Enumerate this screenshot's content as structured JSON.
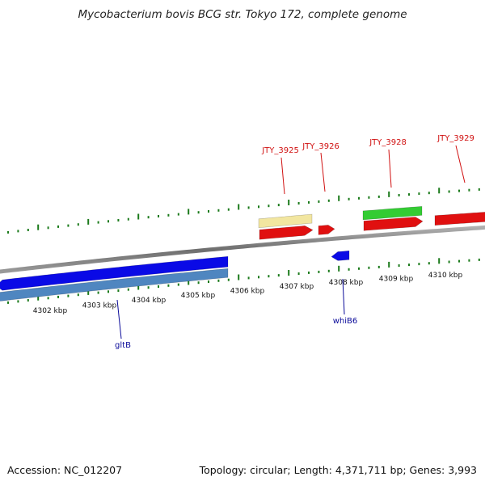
{
  "title": "Mycobacterium bovis BCG str. Tokyo 172, complete genome",
  "footer": {
    "accession": "Accession: NC_012207",
    "summary": "Topology: circular; Length: 4,371,711 bp; Genes: 3,993"
  },
  "axis": {
    "unit": "kbp",
    "tick_labels": [
      "4302 kbp",
      "4303 kbp",
      "4304 kbp",
      "4305 kbp",
      "4306 kbp",
      "4307 kbp",
      "4308 kbp",
      "4309 kbp",
      "4310 kbp"
    ]
  },
  "colors": {
    "backbone": "#808080",
    "tick": "#1a7a1a",
    "forward_cds": "#e01010",
    "forward_label": "#d01010",
    "forward_gene": "#f2e6a0",
    "forward_other": "#33cc33",
    "reverse_cds": "#0a0ae6",
    "reverse_label": "#0a0a99",
    "reverse_gene": "#4f86c0"
  },
  "genes": {
    "forward": [
      "JTY_3925",
      "JTY_3926",
      "JTY_3928",
      "JTY_3929"
    ],
    "reverse": [
      "whiB6",
      "gltB"
    ]
  }
}
